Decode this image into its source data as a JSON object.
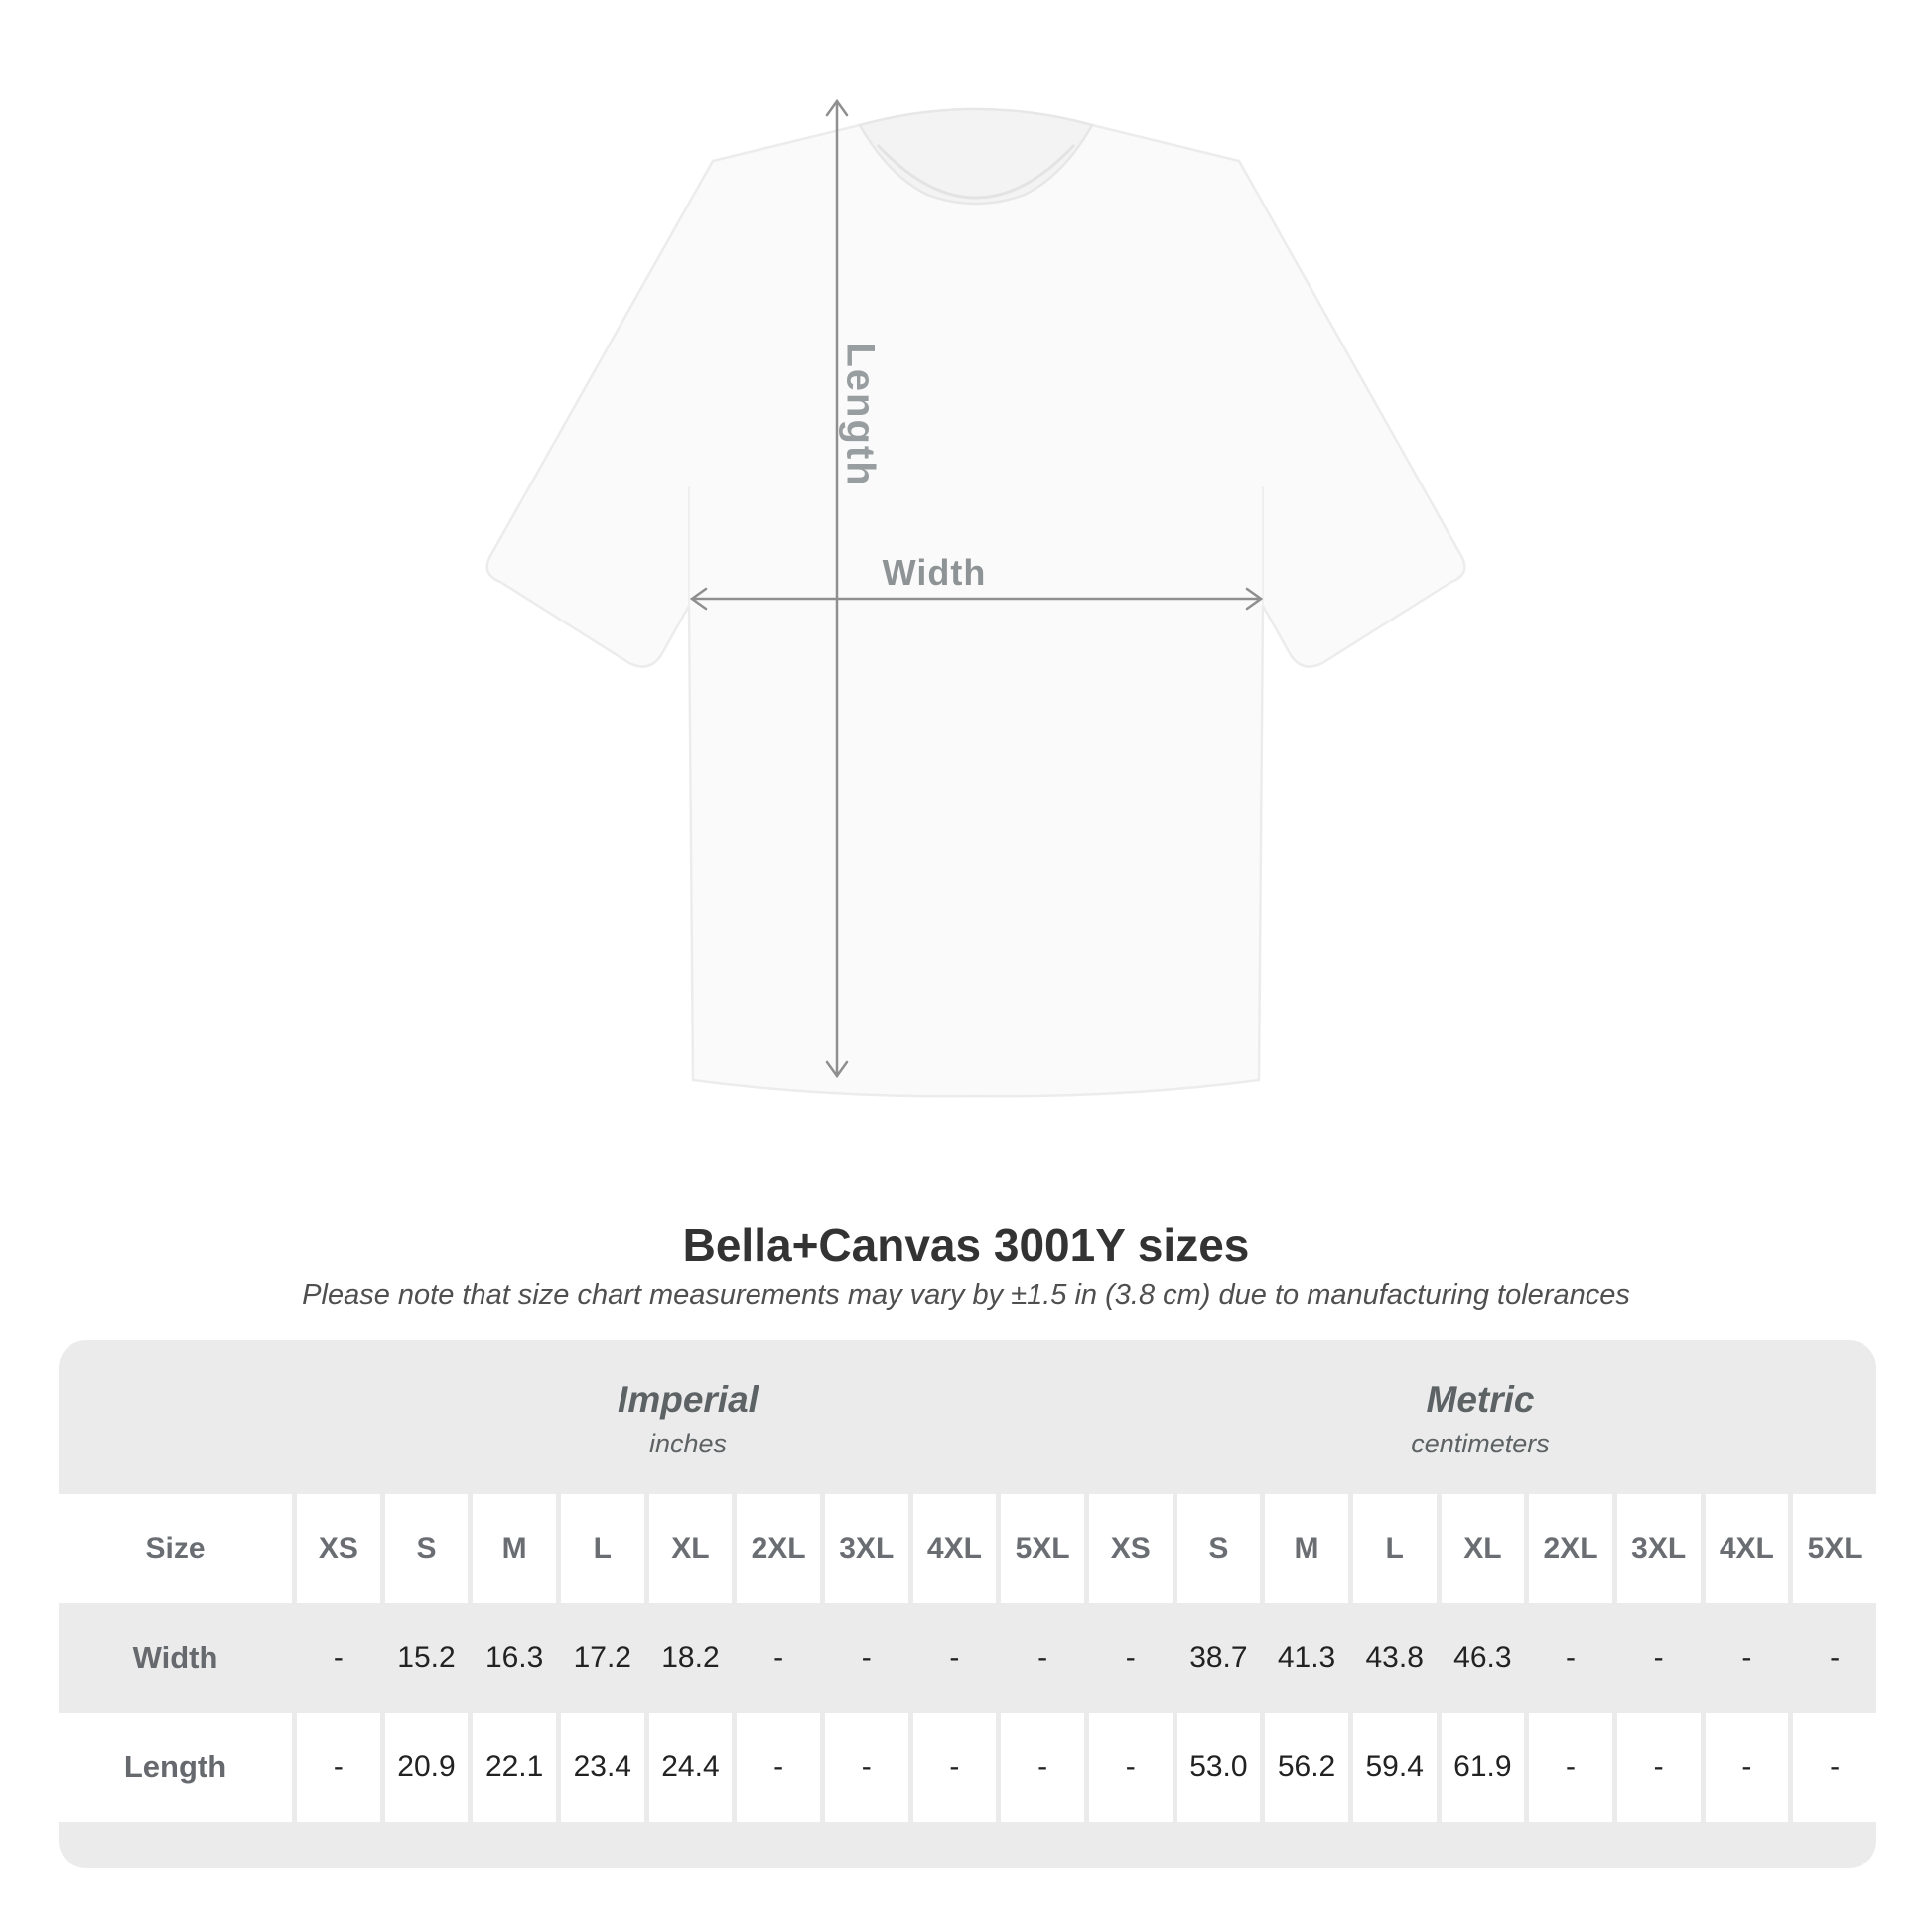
{
  "diagram": {
    "length_label": "Length",
    "width_label": "Width"
  },
  "heading": {
    "title": "Bella+Canvas 3001Y sizes",
    "subtitle": "Please note that size chart measurements may vary by ±1.5 in (3.8 cm) due to manufacturing tolerances"
  },
  "table": {
    "size_header": "Size",
    "unit_groups": [
      {
        "name": "Imperial",
        "unit": "inches"
      },
      {
        "name": "Metric",
        "unit": "centimeters"
      }
    ],
    "sizes": [
      "XS",
      "S",
      "M",
      "L",
      "XL",
      "2XL",
      "3XL",
      "4XL",
      "5XL"
    ],
    "rows": [
      {
        "label": "Width",
        "imperial": [
          "-",
          "15.2",
          "16.3",
          "17.2",
          "18.2",
          "-",
          "-",
          "-",
          "-"
        ],
        "metric": [
          "-",
          "38.7",
          "41.3",
          "43.8",
          "46.3",
          "-",
          "-",
          "-",
          "-"
        ]
      },
      {
        "label": "Length",
        "imperial": [
          "-",
          "20.9",
          "22.1",
          "23.4",
          "24.4",
          "-",
          "-",
          "-",
          "-"
        ],
        "metric": [
          "-",
          "53.0",
          "56.2",
          "59.4",
          "61.9",
          "-",
          "-",
          "-",
          "-"
        ]
      }
    ]
  },
  "colors": {
    "card_background": "#ebebeb",
    "row_white": "#ffffff",
    "value_text": "#222222",
    "label_text": "#66696d",
    "title_text": "#333333",
    "measure_line": "#8f8f8f",
    "shirt_label_text": "#989da0"
  }
}
